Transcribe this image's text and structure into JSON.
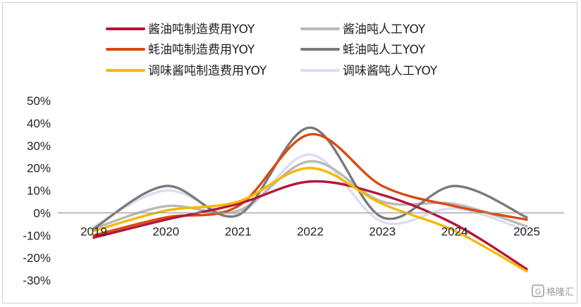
{
  "chart_data": {
    "type": "line",
    "categories": [
      "2019",
      "2020",
      "2021",
      "2022",
      "2023",
      "2024",
      "2025"
    ],
    "ylim": [
      -30,
      50
    ],
    "yticks": [
      "50%",
      "40%",
      "30%",
      "20%",
      "10%",
      "0%",
      "-10%",
      "-20%",
      "-30%"
    ],
    "legend_position": "top",
    "grid": false,
    "series": [
      {
        "name": "酱油吨制造费用YOY",
        "color": "#b5163b",
        "values": [
          -11,
          -3,
          4,
          14,
          8,
          -5,
          -25
        ]
      },
      {
        "name": "酱油吨人工YOY",
        "color": "#b9b9b9",
        "values": [
          -7,
          3,
          1,
          23,
          5,
          4,
          -6
        ]
      },
      {
        "name": "蚝油吨制造费用YOY",
        "color": "#d94a10",
        "values": [
          -10,
          -2,
          3,
          35,
          12,
          3,
          -3
        ]
      },
      {
        "name": "蚝油吨人工YOY",
        "color": "#7a7a7a",
        "values": [
          -7,
          12,
          -1,
          38,
          -2,
          12,
          -2
        ]
      },
      {
        "name": "调味酱吨制造费用YOY",
        "color": "#f5b800",
        "values": [
          -8,
          1,
          5,
          20,
          4,
          -8,
          -26
        ]
      },
      {
        "name": "调味酱吨人工YOY",
        "color": "#d9deef",
        "values": [
          -6,
          10,
          0,
          26,
          -4,
          2,
          -8
        ]
      }
    ]
  },
  "watermark": "格隆汇"
}
